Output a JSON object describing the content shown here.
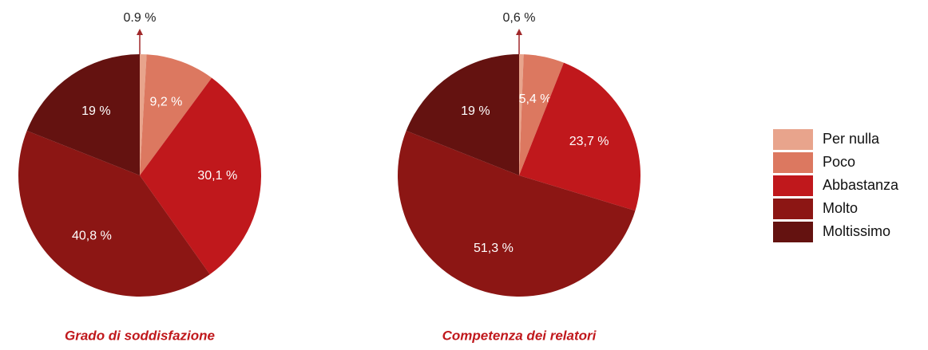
{
  "chart_data": [
    {
      "type": "pie",
      "title": "Grado di soddisfazione",
      "categories": [
        "Per nulla",
        "Poco",
        "Abbastanza",
        "Molto",
        "Moltissimo"
      ],
      "values": [
        0.9,
        9.2,
        30.1,
        40.8,
        19
      ],
      "value_labels": [
        "0.9 %",
        "9,2 %",
        "30,1 %",
        "40,8 %",
        "19 %"
      ],
      "colors": [
        "#e8a48c",
        "#dc7860",
        "#c0181c",
        "#8c1614",
        "#641210"
      ]
    },
    {
      "type": "pie",
      "title": "Competenza dei relatori",
      "categories": [
        "Per nulla",
        "Poco",
        "Abbastanza",
        "Molto",
        "Moltissimo"
      ],
      "values": [
        0.6,
        5.4,
        23.7,
        51.3,
        19
      ],
      "value_labels": [
        "0,6 %",
        "5,4 %",
        "23,7 %",
        "51,3 %",
        "19 %"
      ],
      "colors": [
        "#e8a48c",
        "#dc7860",
        "#c0181c",
        "#8c1614",
        "#641210"
      ]
    }
  ]
}
